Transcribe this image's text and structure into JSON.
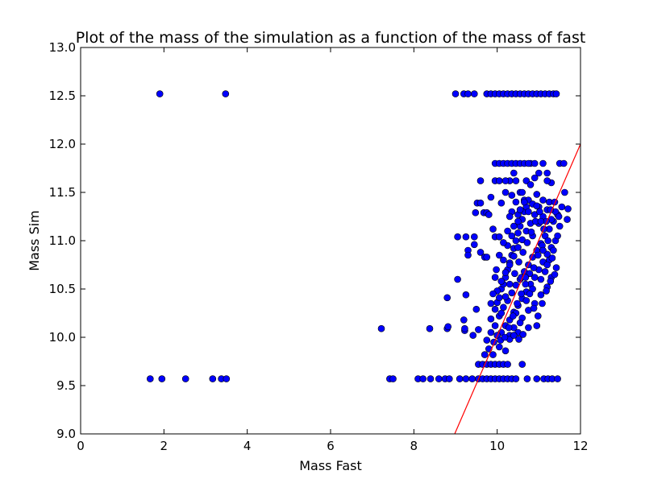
{
  "chart_data": {
    "type": "scatter",
    "title": "Plot of the mass of the simulation as a function of the mass of fast",
    "xlabel": "Mass Fast",
    "ylabel": "Mass Sim",
    "xlim": [
      0,
      12
    ],
    "ylim": [
      9.0,
      13.0
    ],
    "xticks": [
      "0",
      "2",
      "4",
      "6",
      "8",
      "10",
      "12"
    ],
    "yticks": [
      "9.0",
      "9.5",
      "10.0",
      "10.5",
      "11.0",
      "11.5",
      "12.0",
      "12.5",
      "13.0"
    ],
    "grid": false,
    "legend": "none",
    "marker_color": "#0000ff",
    "line_color": "#ff0000",
    "line": {
      "x": [
        8.98,
        12.0
      ],
      "y": [
        9.0,
        12.0
      ]
    },
    "points": [
      [
        1.9,
        12.52
      ],
      [
        3.48,
        12.52
      ],
      [
        9.0,
        12.52
      ],
      [
        9.2,
        12.52
      ],
      [
        9.3,
        12.52
      ],
      [
        9.45,
        12.52
      ],
      [
        9.75,
        12.52
      ],
      [
        9.85,
        12.52
      ],
      [
        9.95,
        12.52
      ],
      [
        10.05,
        12.52
      ],
      [
        10.15,
        12.52
      ],
      [
        10.25,
        12.52
      ],
      [
        10.35,
        12.52
      ],
      [
        10.45,
        12.52
      ],
      [
        10.55,
        12.52
      ],
      [
        10.65,
        12.52
      ],
      [
        10.75,
        12.52
      ],
      [
        10.85,
        12.52
      ],
      [
        10.95,
        12.52
      ],
      [
        11.05,
        12.52
      ],
      [
        11.15,
        12.52
      ],
      [
        11.25,
        12.52
      ],
      [
        11.35,
        12.52
      ],
      [
        11.42,
        12.52
      ],
      [
        1.67,
        9.57
      ],
      [
        1.95,
        9.57
      ],
      [
        2.52,
        9.57
      ],
      [
        3.17,
        9.57
      ],
      [
        3.38,
        9.57
      ],
      [
        3.5,
        9.57
      ],
      [
        7.42,
        9.57
      ],
      [
        7.5,
        9.57
      ],
      [
        8.1,
        9.57
      ],
      [
        8.22,
        9.57
      ],
      [
        8.4,
        9.57
      ],
      [
        8.6,
        9.57
      ],
      [
        8.75,
        9.57
      ],
      [
        8.85,
        9.57
      ],
      [
        9.1,
        9.57
      ],
      [
        9.25,
        9.57
      ],
      [
        9.4,
        9.57
      ],
      [
        9.55,
        9.57
      ],
      [
        9.65,
        9.57
      ],
      [
        9.75,
        9.57
      ],
      [
        9.85,
        9.57
      ],
      [
        9.95,
        9.57
      ],
      [
        10.05,
        9.57
      ],
      [
        10.15,
        9.57
      ],
      [
        10.25,
        9.57
      ],
      [
        10.35,
        9.57
      ],
      [
        10.45,
        9.57
      ],
      [
        10.72,
        9.57
      ],
      [
        10.95,
        9.57
      ],
      [
        11.12,
        9.57
      ],
      [
        11.22,
        9.57
      ],
      [
        11.32,
        9.57
      ],
      [
        11.45,
        9.57
      ],
      [
        7.22,
        10.09
      ],
      [
        8.38,
        10.09
      ],
      [
        8.8,
        10.09
      ],
      [
        8.82,
        10.11
      ],
      [
        9.22,
        10.07
      ],
      [
        9.22,
        10.09
      ],
      [
        9.2,
        10.18
      ],
      [
        9.25,
        10.44
      ],
      [
        8.8,
        10.41
      ],
      [
        9.05,
        10.6
      ],
      [
        9.5,
        10.29
      ],
      [
        9.42,
        10.02
      ],
      [
        9.55,
        10.08
      ],
      [
        9.05,
        11.04
      ],
      [
        9.3,
        10.9
      ],
      [
        9.3,
        10.85
      ],
      [
        9.45,
        10.96
      ],
      [
        9.6,
        10.88
      ],
      [
        9.7,
        10.83
      ],
      [
        9.75,
        10.83
      ],
      [
        9.45,
        11.04
      ],
      [
        9.25,
        11.04
      ],
      [
        9.48,
        11.29
      ],
      [
        9.52,
        11.39
      ],
      [
        9.6,
        11.39
      ],
      [
        9.68,
        11.29
      ],
      [
        9.75,
        11.29
      ],
      [
        9.6,
        11.62
      ],
      [
        9.8,
        11.27
      ],
      [
        9.85,
        11.45
      ],
      [
        9.9,
        11.12
      ],
      [
        9.95,
        11.04
      ],
      [
        10.05,
        11.04
      ],
      [
        10.1,
        11.39
      ],
      [
        10.2,
        11.5
      ],
      [
        10.3,
        11.62
      ],
      [
        10.4,
        11.7
      ],
      [
        10.35,
        11.47
      ],
      [
        10.45,
        11.62
      ],
      [
        10.55,
        11.5
      ],
      [
        10.5,
        11.27
      ],
      [
        10.65,
        11.42
      ],
      [
        10.7,
        11.62
      ],
      [
        10.8,
        11.8
      ],
      [
        10.9,
        11.65
      ],
      [
        11.0,
        11.7
      ],
      [
        11.1,
        11.8
      ],
      [
        11.2,
        11.7
      ],
      [
        11.3,
        11.6
      ],
      [
        11.5,
        11.8
      ],
      [
        11.6,
        11.8
      ],
      [
        11.62,
        11.5
      ],
      [
        11.7,
        11.33
      ],
      [
        11.68,
        11.22
      ],
      [
        9.95,
        11.8
      ],
      [
        10.05,
        11.8
      ],
      [
        10.15,
        11.8
      ],
      [
        10.25,
        11.8
      ],
      [
        10.35,
        11.8
      ],
      [
        10.45,
        11.8
      ],
      [
        10.55,
        11.8
      ],
      [
        10.65,
        11.8
      ],
      [
        10.75,
        11.8
      ],
      [
        10.9,
        11.8
      ],
      [
        11.2,
        11.62
      ],
      [
        9.95,
        11.62
      ],
      [
        10.05,
        11.62
      ],
      [
        10.2,
        11.62
      ],
      [
        9.55,
        9.72
      ],
      [
        9.65,
        9.72
      ],
      [
        9.75,
        9.72
      ],
      [
        9.85,
        9.72
      ],
      [
        9.95,
        9.72
      ],
      [
        10.05,
        9.72
      ],
      [
        10.15,
        9.72
      ],
      [
        10.25,
        9.72
      ],
      [
        10.6,
        9.72
      ],
      [
        9.7,
        9.82
      ],
      [
        9.8,
        9.88
      ],
      [
        9.9,
        9.82
      ],
      [
        10.05,
        9.9
      ],
      [
        10.2,
        9.86
      ],
      [
        9.75,
        9.97
      ],
      [
        9.85,
        10.05
      ],
      [
        10.3,
        10.02
      ],
      [
        9.85,
        10.19
      ],
      [
        9.95,
        10.29
      ],
      [
        10.0,
        10.36
      ],
      [
        10.05,
        10.41
      ],
      [
        10.1,
        10.5
      ],
      [
        10.15,
        10.55
      ],
      [
        10.2,
        10.62
      ],
      [
        10.25,
        10.7
      ],
      [
        10.3,
        10.77
      ],
      [
        10.35,
        10.85
      ],
      [
        10.4,
        10.92
      ],
      [
        10.45,
        11.0
      ],
      [
        10.5,
        11.08
      ],
      [
        10.55,
        11.15
      ],
      [
        10.6,
        11.22
      ],
      [
        10.65,
        11.3
      ],
      [
        10.7,
        11.35
      ],
      [
        10.75,
        11.42
      ],
      [
        9.95,
        10.12
      ],
      [
        10.05,
        10.22
      ],
      [
        10.15,
        10.31
      ],
      [
        10.25,
        10.38
      ],
      [
        10.35,
        10.46
      ],
      [
        10.45,
        10.54
      ],
      [
        10.55,
        10.6
      ],
      [
        10.65,
        10.68
      ],
      [
        10.75,
        10.75
      ],
      [
        10.85,
        10.83
      ],
      [
        10.95,
        10.9
      ],
      [
        11.05,
        10.97
      ],
      [
        11.15,
        11.05
      ],
      [
        11.25,
        11.12
      ],
      [
        11.35,
        11.2
      ],
      [
        11.45,
        11.27
      ],
      [
        11.55,
        11.35
      ],
      [
        10.1,
        10.05
      ],
      [
        10.2,
        10.12
      ],
      [
        10.3,
        10.18
      ],
      [
        10.4,
        10.26
      ],
      [
        10.5,
        10.33
      ],
      [
        10.6,
        10.4
      ],
      [
        10.7,
        10.47
      ],
      [
        10.8,
        10.55
      ],
      [
        10.9,
        10.62
      ],
      [
        11.0,
        10.7
      ],
      [
        11.1,
        10.78
      ],
      [
        11.2,
        10.86
      ],
      [
        11.3,
        10.93
      ],
      [
        11.4,
        11.0
      ],
      [
        10.0,
        10.48
      ],
      [
        10.1,
        10.58
      ],
      [
        10.2,
        10.67
      ],
      [
        10.3,
        10.75
      ],
      [
        10.4,
        10.84
      ],
      [
        10.5,
        10.93
      ],
      [
        10.6,
        11.01
      ],
      [
        10.7,
        11.1
      ],
      [
        10.8,
        11.18
      ],
      [
        10.9,
        11.27
      ],
      [
        11.0,
        11.35
      ],
      [
        11.1,
        11.42
      ],
      [
        11.2,
        11.32
      ],
      [
        11.3,
        11.22
      ],
      [
        11.0,
        11.18
      ],
      [
        10.85,
        11.05
      ],
      [
        10.6,
        10.2
      ],
      [
        10.75,
        10.28
      ],
      [
        10.9,
        10.35
      ],
      [
        11.05,
        10.44
      ],
      [
        11.2,
        10.52
      ],
      [
        11.3,
        10.62
      ],
      [
        10.95,
        10.12
      ],
      [
        10.75,
        10.1
      ],
      [
        10.5,
        10.05
      ],
      [
        10.3,
        9.98
      ],
      [
        10.4,
        10.1
      ],
      [
        10.55,
        10.15
      ],
      [
        10.45,
        10.25
      ],
      [
        10.7,
        10.38
      ],
      [
        10.85,
        10.5
      ],
      [
        11.05,
        10.6
      ],
      [
        11.15,
        10.68
      ],
      [
        11.25,
        10.8
      ],
      [
        11.35,
        10.9
      ],
      [
        11.45,
        11.05
      ],
      [
        11.5,
        11.15
      ],
      [
        11.4,
        11.3
      ],
      [
        11.25,
        11.4
      ],
      [
        11.1,
        11.25
      ],
      [
        10.95,
        11.48
      ],
      [
        10.8,
        11.58
      ],
      [
        10.6,
        11.5
      ],
      [
        10.45,
        11.4
      ],
      [
        10.35,
        11.3
      ],
      [
        9.95,
        10.62
      ],
      [
        9.9,
        10.45
      ],
      [
        9.85,
        10.35
      ],
      [
        10.15,
        10.8
      ],
      [
        10.25,
        10.95
      ],
      [
        10.35,
        11.05
      ],
      [
        10.25,
        11.1
      ],
      [
        10.15,
        10.98
      ],
      [
        10.05,
        10.85
      ],
      [
        9.98,
        10.7
      ],
      [
        10.1,
        10.25
      ],
      [
        10.2,
        10.42
      ],
      [
        10.3,
        10.55
      ],
      [
        10.42,
        10.66
      ],
      [
        10.52,
        10.78
      ],
      [
        10.62,
        10.88
      ],
      [
        10.72,
        10.98
      ],
      [
        10.82,
        11.09
      ],
      [
        10.92,
        11.2
      ],
      [
        11.02,
        11.3
      ],
      [
        11.12,
        11.12
      ],
      [
        11.22,
        11.0
      ],
      [
        11.32,
        10.82
      ],
      [
        11.42,
        10.72
      ],
      [
        10.58,
        10.62
      ],
      [
        10.68,
        10.55
      ],
      [
        10.78,
        10.66
      ],
      [
        10.88,
        10.72
      ],
      [
        10.98,
        10.85
      ],
      [
        11.08,
        10.95
      ],
      [
        11.18,
        11.2
      ],
      [
        11.28,
        11.32
      ],
      [
        11.38,
        11.4
      ],
      [
        11.48,
        11.25
      ],
      [
        10.4,
        10.02
      ],
      [
        10.52,
        9.98
      ],
      [
        10.62,
        10.03
      ],
      [
        9.92,
        9.95
      ],
      [
        10.0,
        10.02
      ],
      [
        10.08,
        9.97
      ],
      [
        10.18,
        10.0
      ],
      [
        10.28,
        10.1
      ],
      [
        10.38,
        10.22
      ],
      [
        10.48,
        10.35
      ],
      [
        10.58,
        10.45
      ],
      [
        10.68,
        10.62
      ],
      [
        10.78,
        10.45
      ],
      [
        10.88,
        10.3
      ],
      [
        10.98,
        10.22
      ],
      [
        11.08,
        10.35
      ],
      [
        11.18,
        10.48
      ],
      [
        11.28,
        10.58
      ],
      [
        11.38,
        10.65
      ],
      [
        11.1,
        10.9
      ],
      [
        11.2,
        10.75
      ],
      [
        10.3,
        11.25
      ],
      [
        10.4,
        11.15
      ],
      [
        10.5,
        11.2
      ],
      [
        10.55,
        11.32
      ],
      [
        10.65,
        11.4
      ],
      [
        10.75,
        11.3
      ],
      [
        10.85,
        11.38
      ],
      [
        10.95,
        11.36
      ],
      [
        11.05,
        11.2
      ]
    ]
  }
}
